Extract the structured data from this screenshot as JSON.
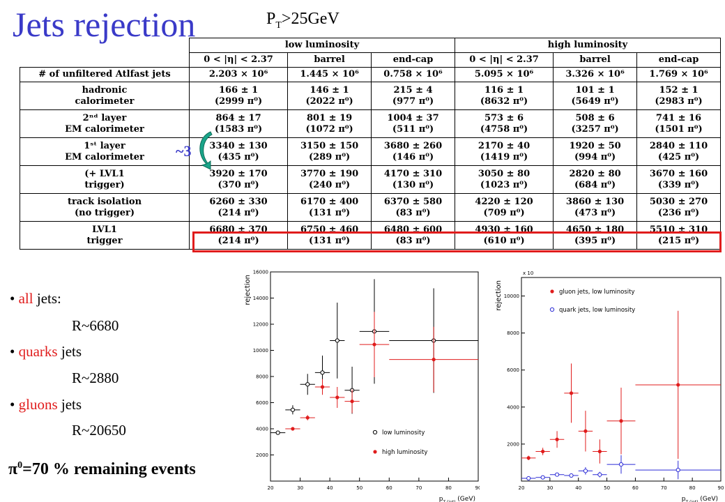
{
  "title": "Jets rejection",
  "pt_cut": {
    "pre": "P",
    "sub": "T",
    "post": ">25GeV"
  },
  "table": {
    "groups": [
      "low luminosity",
      "high luminosity"
    ],
    "columns": [
      "0 < |η| < 2.37",
      "barrel",
      "end-cap",
      "0 < |η| < 2.37",
      "barrel",
      "end-cap"
    ],
    "first_row": {
      "label": "# of unfiltered Atlfast jets",
      "values": [
        "2.203 × 10⁶",
        "1.445 × 10⁶",
        "0.758 × 10⁶",
        "5.095 × 10⁶",
        "3.326 × 10⁶",
        "1.769 × 10⁶"
      ]
    },
    "rows": [
      {
        "label1": "hadronic",
        "label2": "calorimeter",
        "top": [
          "166 ± 1",
          "146 ± 1",
          "215 ± 4",
          "116 ± 1",
          "101 ± 1",
          "152 ± 1"
        ],
        "bottom": [
          "(2999 π⁰)",
          "(2022 π⁰)",
          "(977 π⁰)",
          "(8632 π⁰)",
          "(5649 π⁰)",
          "(2983 π⁰)"
        ]
      },
      {
        "label1": "2ⁿᵈ layer",
        "label2": "EM calorimeter",
        "top": [
          "864 ± 17",
          "801 ± 19",
          "1004 ± 37",
          "573 ± 6",
          "508 ± 6",
          "741 ± 16"
        ],
        "bottom": [
          "(1583 π⁰)",
          "(1072 π⁰)",
          "(511 π⁰)",
          "(4758 π⁰)",
          "(3257 π⁰)",
          "(1501 π⁰)"
        ]
      },
      {
        "label1": "1ˢᵗ layer",
        "label2": "EM calorimeter",
        "top": [
          "3340 ± 130",
          "3150 ± 150",
          "3680 ± 260",
          "2170 ± 40",
          "1920 ± 50",
          "2840 ± 110"
        ],
        "bottom": [
          "(435 π⁰)",
          "(289 π⁰)",
          "(146 π⁰)",
          "(1419 π⁰)",
          "(994 π⁰)",
          "(425 π⁰)"
        ]
      },
      {
        "label1": "(+ LVL1",
        "label2": "trigger)",
        "top": [
          "3920 ± 170",
          "3770 ± 190",
          "4170 ± 310",
          "3050 ± 80",
          "2820 ± 80",
          "3670 ± 160"
        ],
        "bottom": [
          "(370 π⁰)",
          "(240 π⁰)",
          "(130 π⁰)",
          "(1023 π⁰)",
          "(684 π⁰)",
          "(339 π⁰)"
        ]
      },
      {
        "label1": "track isolation",
        "label2": "(no trigger)",
        "top": [
          "6260 ± 330",
          "6170 ± 400",
          "6370 ± 580",
          "4220 ± 120",
          "3860 ± 130",
          "5030 ± 270"
        ],
        "bottom": [
          "(214 π⁰)",
          "(131 π⁰)",
          "(83 π⁰)",
          "(709 π⁰)",
          "(473 π⁰)",
          "(236 π⁰)"
        ]
      },
      {
        "label1": "LVL1",
        "label2": "trigger",
        "top": [
          "6680 ± 370",
          "6750 ± 460",
          "6480 ± 600",
          "4930 ± 160",
          "4650 ± 180",
          "5510 ± 310"
        ],
        "bottom": [
          "(214 π⁰)",
          "(131 π⁰)",
          "(83 π⁰)",
          "(610 π⁰)",
          "(395 π⁰)",
          "(215 π⁰)"
        ]
      }
    ]
  },
  "annotation": {
    "factor": "~3",
    "highlight_color": "#e01c1c",
    "arrow_color": "#1aa58a"
  },
  "bullets": [
    {
      "red": "all",
      "rest": " jets:",
      "r": "R~6680"
    },
    {
      "red": "quarks",
      "rest": " jets",
      "r": "R~2880"
    },
    {
      "red": "gluons",
      "rest": " jets",
      "r": "R~20650"
    }
  ],
  "summary": {
    "pi": "π",
    "sup": "0",
    "text": "=70 % remaining events"
  },
  "chart_data": [
    {
      "type": "scatter",
      "ylabel": "rejection",
      "xlabel": "p_T (jet) (GeV)",
      "xlim": [
        20,
        90
      ],
      "ylim": [
        0,
        16000
      ],
      "xticks": [
        20,
        30,
        40,
        50,
        60,
        70,
        80,
        90
      ],
      "yticks": [
        2000,
        4000,
        6000,
        8000,
        10000,
        12000,
        14000,
        16000
      ],
      "series": [
        {
          "name": "low luminosity",
          "marker": "open",
          "color": "#000000",
          "points": [
            {
              "x": 22.5,
              "xerr": 2.5,
              "y": 3700,
              "yerr": 150
            },
            {
              "x": 27.5,
              "xerr": 2.5,
              "y": 5450,
              "yerr": 350
            },
            {
              "x": 32.5,
              "xerr": 2.5,
              "y": 7400,
              "yerr": 800
            },
            {
              "x": 37.5,
              "xerr": 2.5,
              "y": 8300,
              "yerr": 1300
            },
            {
              "x": 42.5,
              "xerr": 2.5,
              "y": 10750,
              "yerr": 2900
            },
            {
              "x": 47.5,
              "xerr": 2.5,
              "y": 6950,
              "yerr": 1800
            },
            {
              "x": 55,
              "xerr": 5,
              "y": 11450,
              "yerr": 4000
            },
            {
              "x": 75,
              "xerr": 15,
              "y": 10750,
              "yerr": 4000
            }
          ]
        },
        {
          "name": "high luminosity",
          "marker": "filled",
          "color": "#e01c1c",
          "points": [
            {
              "x": 27.5,
              "xerr": 2.5,
              "y": 4000,
              "yerr": 120
            },
            {
              "x": 32.5,
              "xerr": 2.5,
              "y": 4850,
              "yerr": 200
            },
            {
              "x": 37.5,
              "xerr": 2.5,
              "y": 7200,
              "yerr": 600
            },
            {
              "x": 42.5,
              "xerr": 2.5,
              "y": 6400,
              "yerr": 800
            },
            {
              "x": 47.5,
              "xerr": 2.5,
              "y": 6100,
              "yerr": 900
            },
            {
              "x": 55,
              "xerr": 5,
              "y": 10450,
              "yerr": 2500
            },
            {
              "x": 75,
              "xerr": 15,
              "y": 9300,
              "yerr": 2500
            }
          ]
        }
      ]
    },
    {
      "type": "scatter",
      "ylabel": "rejection",
      "xlabel": "p_T (jet) (GeV)",
      "y_multiplier": "x 10",
      "xlim": [
        20,
        90
      ],
      "ylim": [
        0,
        11000
      ],
      "xticks": [
        20,
        30,
        40,
        50,
        60,
        70,
        80,
        90
      ],
      "yticks": [
        2000,
        4000,
        6000,
        8000,
        10000
      ],
      "series": [
        {
          "name": "gluon jets, low luminosity",
          "marker": "filled",
          "color": "#e01c1c",
          "points": [
            {
              "x": 22.5,
              "xerr": 2.5,
              "y": 1250,
              "yerr": 120
            },
            {
              "x": 27.5,
              "xerr": 2.5,
              "y": 1600,
              "yerr": 200
            },
            {
              "x": 32.5,
              "xerr": 2.5,
              "y": 2250,
              "yerr": 450
            },
            {
              "x": 37.5,
              "xerr": 2.5,
              "y": 4750,
              "yerr": 1600
            },
            {
              "x": 42.5,
              "xerr": 2.5,
              "y": 2700,
              "yerr": 1100
            },
            {
              "x": 47.5,
              "xerr": 2.5,
              "y": 1600,
              "yerr": 650
            },
            {
              "x": 55,
              "xerr": 5,
              "y": 3250,
              "yerr": 1800
            },
            {
              "x": 75,
              "xerr": 15,
              "y": 5200,
              "yerr": 4000
            }
          ]
        },
        {
          "name": "quark jets, low luminosity",
          "marker": "open",
          "color": "#2b2bd6",
          "points": [
            {
              "x": 22.5,
              "xerr": 2.5,
              "y": 150,
              "yerr": 30
            },
            {
              "x": 27.5,
              "xerr": 2.5,
              "y": 200,
              "yerr": 40
            },
            {
              "x": 32.5,
              "xerr": 2.5,
              "y": 350,
              "yerr": 60
            },
            {
              "x": 37.5,
              "xerr": 2.5,
              "y": 300,
              "yerr": 80
            },
            {
              "x": 42.5,
              "xerr": 2.5,
              "y": 550,
              "yerr": 200
            },
            {
              "x": 47.5,
              "xerr": 2.5,
              "y": 350,
              "yerr": 150
            },
            {
              "x": 55,
              "xerr": 5,
              "y": 900,
              "yerr": 500
            },
            {
              "x": 75,
              "xerr": 15,
              "y": 600,
              "yerr": 500
            }
          ]
        }
      ]
    }
  ]
}
